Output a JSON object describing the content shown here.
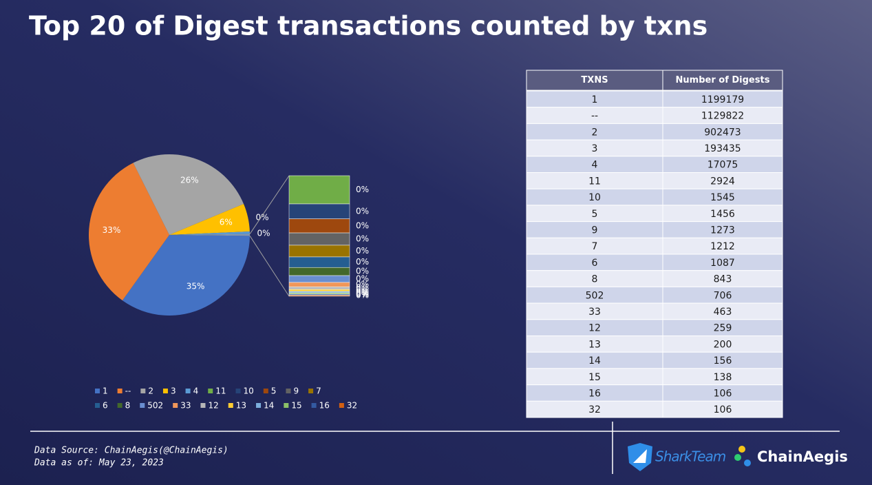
{
  "title": "Top 20 of Digest transactions counted by txns",
  "chart_data": {
    "type": "pie",
    "categories": [
      "1",
      "--",
      "2",
      "3",
      "4",
      "11",
      "10",
      "5",
      "9",
      "7",
      "6",
      "8",
      "502",
      "33",
      "12",
      "13",
      "14",
      "15",
      "16",
      "32"
    ],
    "values": [
      34.71,
      32.71,
      26.12,
      5.6,
      0.494,
      0.0846,
      0.0447,
      0.0421,
      0.0369,
      0.0351,
      0.0315,
      0.0244,
      0.0204,
      0.0134,
      0.0075,
      0.0058,
      0.0045,
      0.004,
      0.0031,
      0.0031
    ],
    "value_labels": [
      "35%",
      "33%",
      "26%",
      "6%",
      "0%",
      "0%",
      "0%",
      "0%",
      "0%",
      "0%",
      "0%",
      "0%",
      "0%",
      "0%",
      "0%",
      "0%",
      "0%",
      "0%",
      "0%",
      "0%"
    ],
    "other_label": "0%",
    "colors": [
      "#4472c4",
      "#ed7d31",
      "#a5a5a5",
      "#ffc000",
      "#5b9bd5",
      "#70ad47",
      "#264478",
      "#9e480e",
      "#636363",
      "#997300",
      "#255e91",
      "#43682b",
      "#698ed0",
      "#f1975a",
      "#b7b7b7",
      "#ffcd33",
      "#7cafdd",
      "#8cc168",
      "#335aa1",
      "#d26012"
    ]
  },
  "table": {
    "header": [
      "TXNS",
      "Number of Digests"
    ],
    "rows": [
      [
        "1",
        1199179
      ],
      [
        "--",
        1129822
      ],
      [
        "2",
        902473
      ],
      [
        "3",
        193435
      ],
      [
        "4",
        17075
      ],
      [
        "11",
        2924
      ],
      [
        "10",
        1545
      ],
      [
        "5",
        1456
      ],
      [
        "9",
        1273
      ],
      [
        "7",
        1212
      ],
      [
        "6",
        1087
      ],
      [
        "8",
        843
      ],
      [
        "502",
        706
      ],
      [
        "33",
        463
      ],
      [
        "12",
        259
      ],
      [
        "13",
        200
      ],
      [
        "14",
        156
      ],
      [
        "15",
        138
      ],
      [
        "16",
        106
      ],
      [
        "32",
        106
      ]
    ]
  },
  "footer": {
    "source": "Data Source: ChainAegis(@ChainAegis)",
    "date": "Data as of: May 23, 2023",
    "logos": [
      "SharkTeam",
      "ChainAegis"
    ]
  }
}
